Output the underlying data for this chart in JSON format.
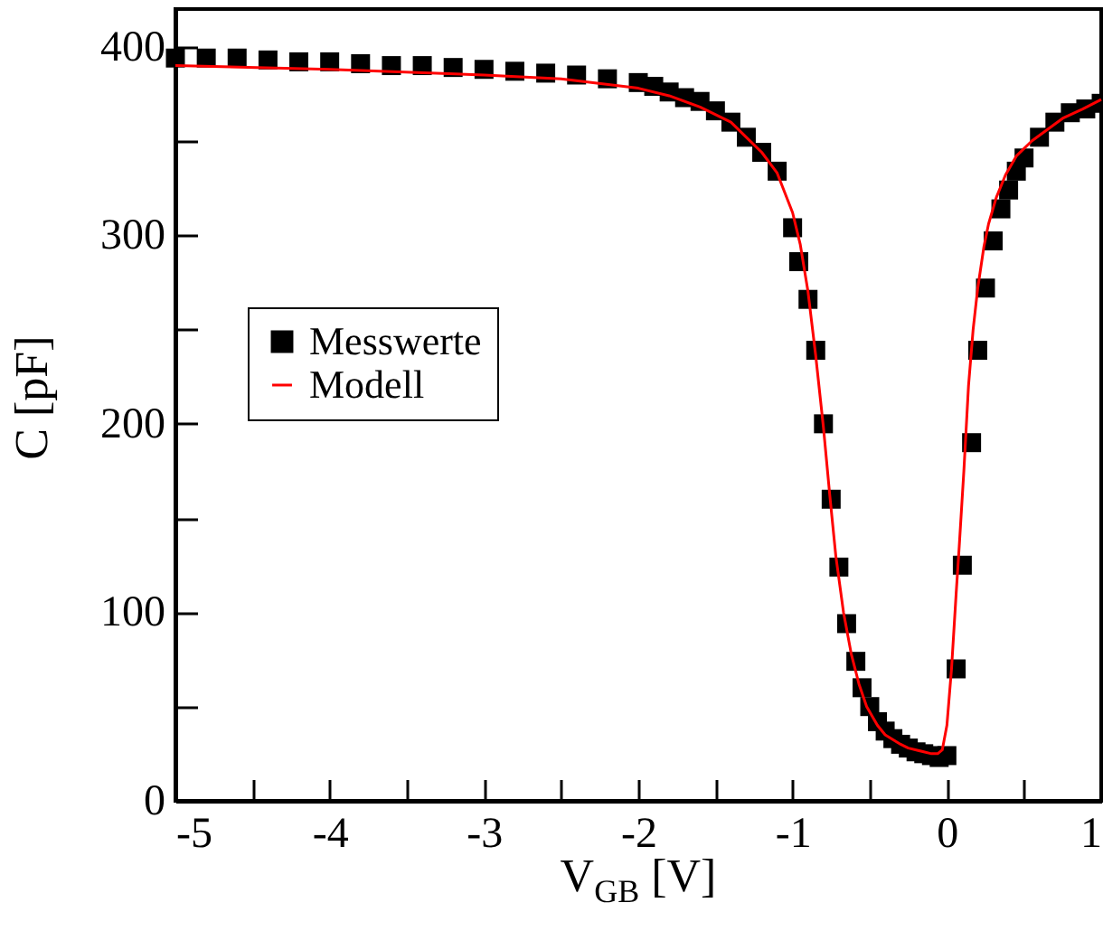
{
  "chart_data": {
    "type": "scatter",
    "xlabel": "V$_{GB}$ [V]",
    "ylabel": "C [pF]",
    "xlim": [
      -5,
      1
    ],
    "ylim": [
      0,
      420
    ],
    "xticks": [
      -5,
      {
        "value": -4.5,
        "label": null
      },
      -4,
      {
        "value": -3.5,
        "label": null
      },
      -3,
      {
        "value": -2.5,
        "label": null
      },
      -2,
      {
        "value": -1.5,
        "label": null
      },
      -1,
      {
        "value": -0.5,
        "label": null
      },
      0,
      {
        "value": 0.5,
        "label": null
      },
      1
    ],
    "yticks": [
      0,
      {
        "value": 50,
        "label": null
      },
      100,
      {
        "value": 150,
        "label": null
      },
      200,
      {
        "value": 250,
        "label": null
      },
      300,
      {
        "value": 350,
        "label": null
      },
      400
    ],
    "grid": false,
    "legend": "left",
    "series": [
      {
        "name": "Messwerte",
        "marker": "square",
        "color": "#000000",
        "x": [
          -5,
          -4.8,
          -4.6,
          -4.4,
          -4.2,
          -4,
          -3.8,
          -3.6,
          -3.4,
          -3.2,
          -3,
          -2.8,
          -2.6,
          -2.4,
          -2.2,
          -2,
          -1.9,
          -1.8,
          -1.7,
          -1.6,
          -1.5,
          -1.4,
          -1.3,
          -1.2,
          -1.1,
          -1.0,
          -0.96,
          -0.9,
          -0.85,
          -0.8,
          -0.75,
          -0.7,
          -0.65,
          -0.59,
          -0.55,
          -0.5,
          -0.45,
          -0.4,
          -0.35,
          -0.3,
          -0.25,
          -0.2,
          -0.15,
          -0.1,
          -0.05,
          0.0,
          0.06,
          0.1,
          0.16,
          0.2,
          0.25,
          0.3,
          0.35,
          0.4,
          0.45,
          0.5,
          0.6,
          0.7,
          0.8,
          0.9,
          1.0
        ],
        "values": [
          394,
          394,
          394,
          393,
          392,
          392,
          391,
          390,
          390,
          389,
          388,
          387,
          386,
          385,
          383,
          381,
          379,
          376,
          373,
          371,
          366,
          360,
          352,
          344,
          334,
          304,
          286,
          266,
          239,
          200,
          160,
          124,
          94,
          74,
          60,
          50,
          42,
          37,
          33,
          30,
          28,
          26,
          25,
          24,
          23,
          24,
          70,
          125,
          190,
          239,
          272,
          297,
          314,
          324,
          334,
          341,
          352,
          360,
          365,
          367,
          370
        ]
      },
      {
        "name": "Modell",
        "type": "line",
        "color": "#ff0000",
        "x": [
          -5,
          -4,
          -3,
          -2.5,
          -2,
          -1.8,
          -1.6,
          -1.4,
          -1.3,
          -1.2,
          -1.1,
          -1.0,
          -0.95,
          -0.9,
          -0.85,
          -0.8,
          -0.76,
          -0.72,
          -0.67,
          -0.62,
          -0.57,
          -0.52,
          -0.45,
          -0.4,
          -0.3,
          -0.25,
          -0.15,
          -0.1,
          -0.06,
          -0.03,
          0.0,
          0.03,
          0.06,
          0.08,
          0.11,
          0.14,
          0.17,
          0.2,
          0.24,
          0.27,
          0.32,
          0.38,
          0.45,
          0.55,
          0.65,
          0.75,
          0.88,
          1.0
        ],
        "values": [
          390,
          388,
          385,
          383,
          378,
          374,
          368,
          360,
          352,
          344,
          333,
          312,
          295,
          270,
          236,
          198,
          163,
          130,
          100,
          78,
          62,
          50,
          40,
          35,
          30,
          28,
          26,
          25,
          25,
          27,
          40,
          70,
          110,
          135,
          175,
          220,
          250,
          272,
          294,
          306,
          320,
          332,
          342,
          350,
          356,
          362,
          367,
          372
        ]
      }
    ]
  }
}
